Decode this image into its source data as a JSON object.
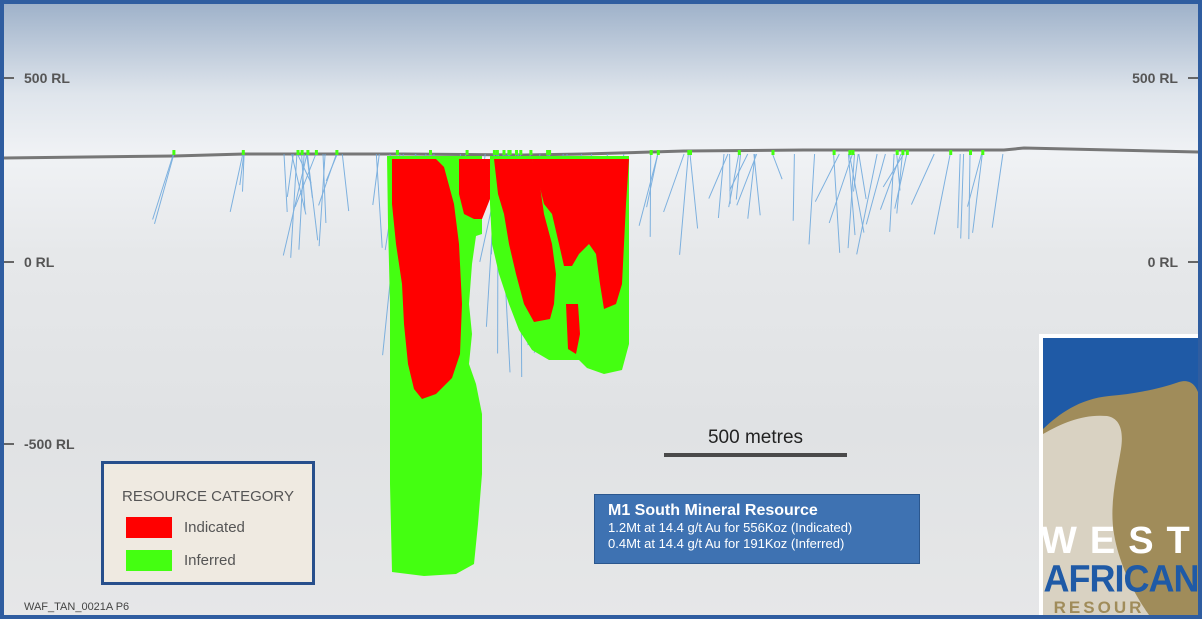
{
  "rl_labels": {
    "rl_500": "500 RL",
    "rl_0": "0 RL",
    "rl_minus_500": "-500 RL"
  },
  "scale_bar": {
    "label": "500 metres"
  },
  "legend": {
    "title": "RESOURCE CATEGORY",
    "items": [
      {
        "label": "Indicated",
        "color": "#ff0000"
      },
      {
        "label": "Inferred",
        "color": "#44ff11"
      }
    ]
  },
  "resource_box": {
    "title": "M1 South Mineral Resource",
    "lines": [
      "1.2Mt at 14.4 g/t Au for 556Koz (Indicated)",
      "0.4Mt at 14.4 g/t Au for 191Koz (Inferred)"
    ]
  },
  "footer_code": "WAF_TAN_0021A P6",
  "logo": {
    "line1": "WEST",
    "line2": "AFRICAN",
    "line3": "RESOURCES"
  },
  "colors": {
    "frame_border": "#2f5da0",
    "indicated": "#ff0000",
    "inferred": "#44ff11",
    "drillholes": "#6aa6dc",
    "topography": "#7a7a7a",
    "logo_blue": "#1f5aa6",
    "logo_gold": "#a08c5a"
  }
}
